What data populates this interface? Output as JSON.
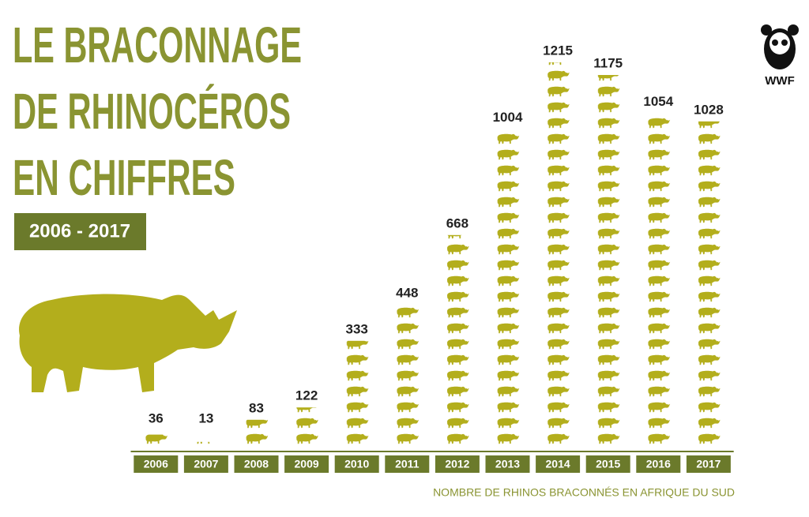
{
  "chart_data": {
    "type": "pictograph",
    "title": [
      "LE BRACONNAGE",
      "DE RHINOCÉROS",
      "EN CHIFFRES"
    ],
    "subtitle": "2006 - 2017",
    "caption": "NOMBRE DE RHINOS BRACONNÉS EN AFRIQUE DU SUD",
    "logo": "WWF",
    "categories": [
      "2006",
      "2007",
      "2008",
      "2009",
      "2010",
      "2011",
      "2012",
      "2013",
      "2014",
      "2015",
      "2016",
      "2017"
    ],
    "values": [
      36,
      13,
      83,
      122,
      333,
      448,
      668,
      1004,
      1215,
      1175,
      1054,
      1028
    ],
    "ylim": [
      0,
      1250
    ],
    "color": "#b3ae1c",
    "label_color": "#6b7a2b",
    "title_color": "#8a9432"
  }
}
